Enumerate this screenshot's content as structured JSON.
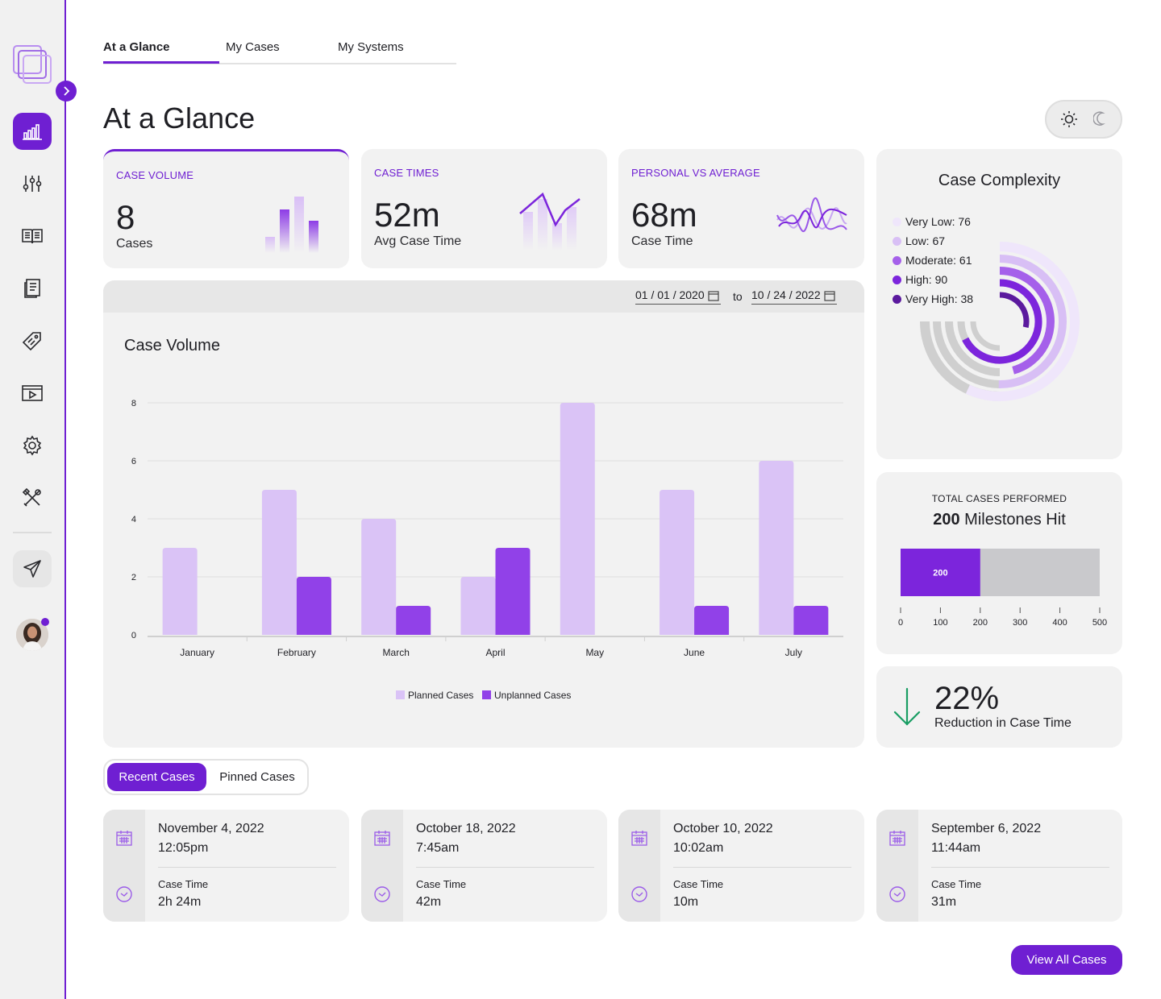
{
  "tabs": [
    {
      "label": "At a Glance",
      "active": true
    },
    {
      "label": "My Cases",
      "active": false
    },
    {
      "label": "My Systems",
      "active": false
    }
  ],
  "page_title": "At a Glance",
  "sidebar": {
    "items": [
      {
        "icon": "bar-chart-icon",
        "active": true
      },
      {
        "icon": "sliders-icon"
      },
      {
        "icon": "book-icon"
      },
      {
        "icon": "document-icon"
      },
      {
        "icon": "tag-icon"
      },
      {
        "icon": "video-icon"
      },
      {
        "icon": "gear-icon"
      },
      {
        "icon": "tools-icon"
      },
      {
        "icon": "send-icon"
      }
    ]
  },
  "stats": [
    {
      "label": "CASE VOLUME",
      "value": "8",
      "sub": "Cases",
      "spark_icon": "bar-sparkline-icon"
    },
    {
      "label": "CASE TIMES",
      "value": "52m",
      "sub": "Avg Case Time",
      "spark_icon": "line-sparkline-icon"
    },
    {
      "label": "PERSONAL VS AVERAGE",
      "value": "68m",
      "sub": "Case Time",
      "spark_icon": "wave-sparkline-icon"
    }
  ],
  "date_range": {
    "from": "01 / 01 / 2020",
    "to_label": "to",
    "to": "10 / 24 / 2022"
  },
  "chart_data": {
    "type": "bar",
    "title": "Case Volume",
    "categories": [
      "January",
      "February",
      "March",
      "April",
      "May",
      "June",
      "July"
    ],
    "series": [
      {
        "name": "Planned Cases",
        "values": [
          3,
          5,
          4,
          2,
          8,
          5,
          6
        ],
        "color": "#dac3f6"
      },
      {
        "name": "Unplanned Cases",
        "values": [
          0,
          2,
          1,
          3,
          0,
          1,
          1
        ],
        "color": "#9141e8"
      }
    ],
    "ylim": [
      0,
      8
    ],
    "yticks": [
      0,
      2,
      4,
      6,
      8
    ],
    "grid": true,
    "legend": "bottom"
  },
  "complexity": {
    "title": "Case Complexity",
    "items": [
      {
        "label": "Very Low: 76",
        "value": 76,
        "color": "#efe6fb"
      },
      {
        "label": "Low: 67",
        "value": 67,
        "color": "#d8bff5"
      },
      {
        "label": "Moderate: 61",
        "value": 61,
        "color": "#a560ea"
      },
      {
        "label": "High: 90",
        "value": 90,
        "color": "#7c25dc"
      },
      {
        "label": "Very High: 38",
        "value": 38,
        "color": "#5b1a9e"
      }
    ]
  },
  "milestones": {
    "label": "TOTAL CASES PERFORMED",
    "title_bold": "200",
    "title_rest": "Milestones Hit",
    "value": 200,
    "value_label": "200",
    "max": 500,
    "ticks": [
      "0",
      "100",
      "200",
      "300",
      "400",
      "500"
    ]
  },
  "reduction": {
    "value": "22%",
    "sub": "Reduction in Case Time",
    "icon": "arrow-down-icon",
    "color": "#1a9e64"
  },
  "cases_toggle": {
    "active": "Recent Cases",
    "inactive": "Pinned Cases"
  },
  "recent_cases": [
    {
      "date": "November 4, 2022",
      "time": "12:05pm",
      "label": "Case Time",
      "duration": "2h 24m"
    },
    {
      "date": "October 18, 2022",
      "time": "7:45am",
      "label": "Case Time",
      "duration": "42m"
    },
    {
      "date": "October 10, 2022",
      "time": "10:02am",
      "label": "Case Time",
      "duration": "10m"
    },
    {
      "date": "September 6, 2022",
      "time": "11:44am",
      "label": "Case Time",
      "duration": "31m"
    }
  ],
  "view_all_label": "View All Cases",
  "colors": {
    "accent": "#6f1fd2"
  }
}
